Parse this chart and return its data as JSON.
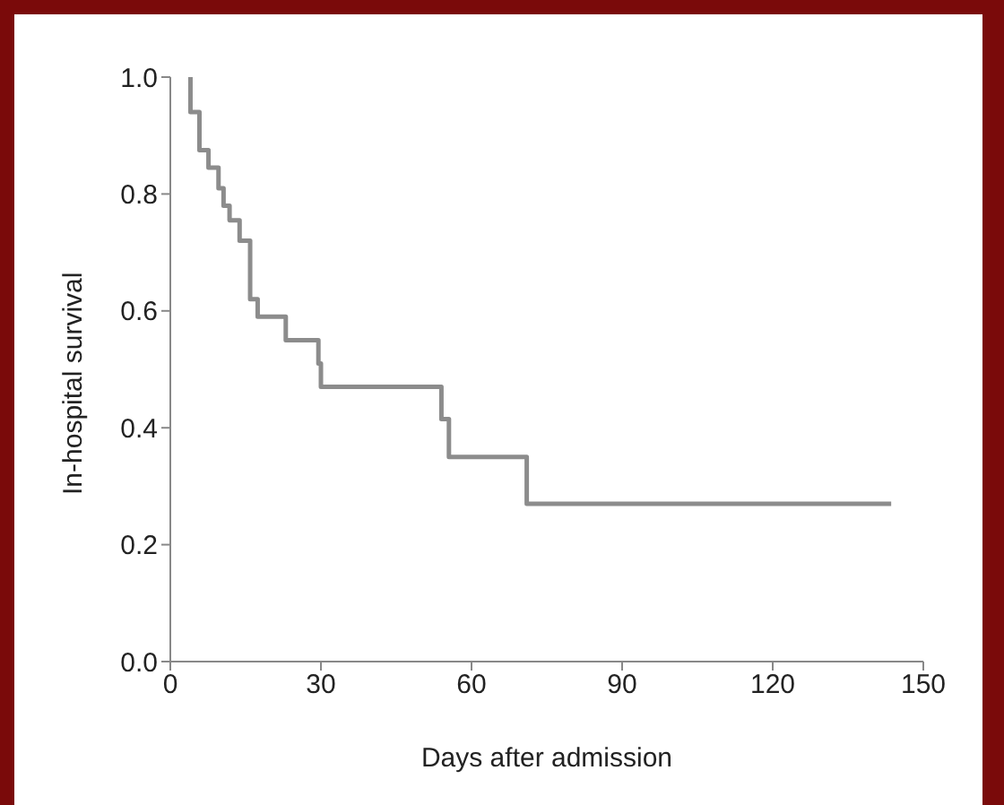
{
  "chart_data": {
    "type": "step",
    "xlabel": "Days after admission",
    "ylabel": "In-hospital survival",
    "series": [
      {
        "color": "#8c8c8c",
        "x": [
          4,
          4.01,
          5.8,
          7.6,
          9.6,
          10.6,
          11.8,
          13.8,
          15.9,
          17.4,
          23,
          29.5,
          30,
          54,
          55.5,
          71,
          143.6
        ],
        "values": [
          1.0,
          0.94,
          0.875,
          0.845,
          0.81,
          0.78,
          0.755,
          0.72,
          0.62,
          0.59,
          0.55,
          0.51,
          0.47,
          0.415,
          0.35,
          0.27,
          0.27
        ]
      }
    ],
    "xlim": [
      0,
      150
    ],
    "xticks": [
      0,
      30,
      60,
      90,
      120,
      150
    ],
    "ylim": [
      0,
      1
    ],
    "yticks": [
      {
        "value": 0,
        "label": "0.0"
      },
      {
        "value": 0.2,
        "label": "0.2"
      },
      {
        "value": 0.4,
        "label": "0.4"
      },
      {
        "value": 0.6,
        "label": "0.6"
      },
      {
        "value": 0.8,
        "label": "0.8"
      },
      {
        "value": 1,
        "label": "1.0"
      }
    ],
    "grid": false,
    "legend": false,
    "marker": "none",
    "line_style": "solid"
  }
}
